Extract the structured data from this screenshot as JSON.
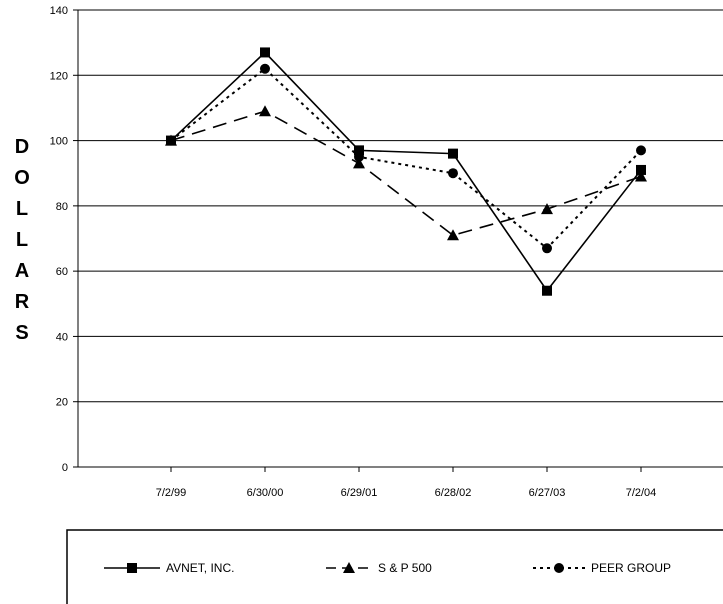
{
  "chart_data": {
    "type": "line",
    "categories": [
      "7/2/99",
      "6/30/00",
      "6/29/01",
      "6/28/02",
      "6/27/03",
      "7/2/04"
    ],
    "ylabel": "DOLLARS",
    "ylabel_letters": [
      "D",
      "O",
      "L",
      "L",
      "A",
      "R",
      "S"
    ],
    "ylim": [
      0,
      140
    ],
    "yticks": [
      0,
      20,
      40,
      60,
      80,
      100,
      120,
      140
    ],
    "grid": true,
    "legend_position": "bottom",
    "series": [
      {
        "name": "AVNET, INC.",
        "values": [
          100,
          127,
          97,
          96,
          54,
          91
        ],
        "marker": "square",
        "dash": "solid"
      },
      {
        "name": "S & P 500",
        "values": [
          100,
          109,
          93,
          71,
          79,
          89
        ],
        "marker": "triangle",
        "dash": "dashed"
      },
      {
        "name": "PEER GROUP",
        "values": [
          100,
          122,
          95,
          90,
          67,
          97
        ],
        "marker": "circle",
        "dash": "dotted"
      }
    ]
  }
}
